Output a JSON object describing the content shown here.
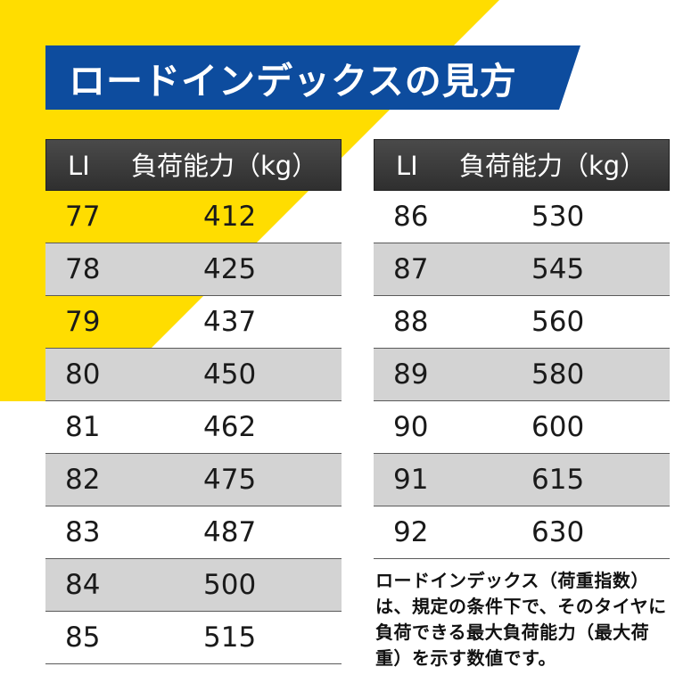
{
  "title": "ロードインデックスの見方",
  "colors": {
    "yellow": "#ffdd00",
    "banner": "#0d4c9e",
    "header": "#3a3a3a",
    "stripe": "#d3d3d3"
  },
  "left_table": {
    "header": {
      "li": "LI",
      "capacity": "負荷能力（kg）"
    },
    "rows": [
      {
        "li": "77",
        "kg": "412"
      },
      {
        "li": "78",
        "kg": "425"
      },
      {
        "li": "79",
        "kg": "437"
      },
      {
        "li": "80",
        "kg": "450"
      },
      {
        "li": "81",
        "kg": "462"
      },
      {
        "li": "82",
        "kg": "475"
      },
      {
        "li": "83",
        "kg": "487"
      },
      {
        "li": "84",
        "kg": "500"
      },
      {
        "li": "85",
        "kg": "515"
      }
    ]
  },
  "right_table": {
    "header": {
      "li": "LI",
      "capacity": "負荷能力（kg）"
    },
    "rows": [
      {
        "li": "86",
        "kg": "530"
      },
      {
        "li": "87",
        "kg": "545"
      },
      {
        "li": "88",
        "kg": "560"
      },
      {
        "li": "89",
        "kg": "580"
      },
      {
        "li": "90",
        "kg": "600"
      },
      {
        "li": "91",
        "kg": "615"
      },
      {
        "li": "92",
        "kg": "630"
      }
    ]
  },
  "note": "ロードインデックス（荷重指数）は、規定の条件下で、そのタイヤに負荷できる最大負荷能力（最大荷重）を示す数値です。"
}
